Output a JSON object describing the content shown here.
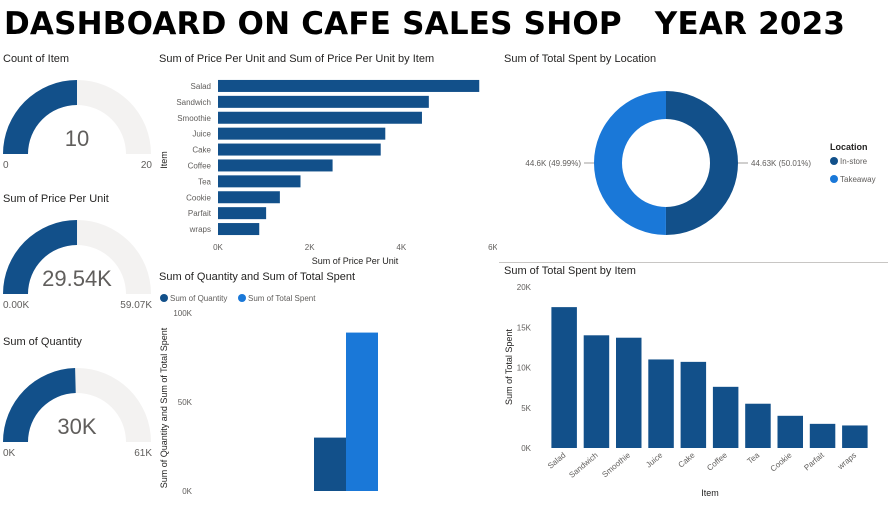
{
  "dashboard": {
    "title": "DASHBOARD ON CAFE SALES SHOP   YEAR 2023"
  },
  "colors": {
    "dark_blue": "#12508a",
    "light_blue": "#1a78d8",
    "track": "#f3f2f1"
  },
  "chart_data": [
    {
      "id": "count_of_item",
      "type": "gauge",
      "title": "Count of Item",
      "value": 10,
      "min": 0,
      "max": 20,
      "value_label": "10",
      "min_label": "0",
      "max_label": "20"
    },
    {
      "id": "sum_price_gauge",
      "type": "gauge",
      "title": "Sum of Price Per Unit",
      "value": 29540,
      "min": 0,
      "max": 59070,
      "value_label": "29.54K",
      "min_label": "0.00K",
      "max_label": "59.07K"
    },
    {
      "id": "sum_quantity_gauge",
      "type": "gauge",
      "title": "Sum of Quantity",
      "value": 30000,
      "min": 0,
      "max": 61000,
      "value_label": "30K",
      "min_label": "0K",
      "max_label": "61K"
    },
    {
      "id": "price_by_item",
      "type": "bar",
      "orientation": "horizontal",
      "title": "Sum of Price Per Unit and Sum of Price Per Unit by Item",
      "xlabel": "Sum of Price Per Unit",
      "ylabel": "Item",
      "categories": [
        "Salad",
        "Sandwich",
        "Smoothie",
        "Juice",
        "Cake",
        "Coffee",
        "Tea",
        "Cookie",
        "Parfait",
        "wraps"
      ],
      "values": [
        5700,
        4600,
        4450,
        3650,
        3550,
        2500,
        1800,
        1350,
        1050,
        900
      ],
      "xlim": [
        0,
        6000
      ],
      "xticks": [
        0,
        2000,
        4000,
        6000
      ],
      "xtick_labels": [
        "0K",
        "2K",
        "4K",
        "6K"
      ]
    },
    {
      "id": "total_by_location",
      "type": "pie",
      "style": "donut",
      "title": "Sum of Total Spent by Location",
      "legend_title": "Location",
      "legend_position": "right",
      "slices": [
        {
          "label": "In-store",
          "value": 44630,
          "data_label": "44.63K (50.01%)"
        },
        {
          "label": "Takeaway",
          "value": 44600,
          "data_label": "44.6K (49.99%)"
        }
      ]
    },
    {
      "id": "qty_and_total",
      "type": "bar",
      "title": "Sum of Quantity and Sum of Total Spent",
      "ylabel": "Sum of Quantity and Sum of Total Spent",
      "legend_position": "top-left",
      "series": [
        {
          "name": "Sum of Quantity",
          "values": [
            30000
          ]
        },
        {
          "name": "Sum of Total Spent",
          "values": [
            89000
          ]
        }
      ],
      "ylim": [
        0,
        100000
      ],
      "yticks": [
        0,
        50000,
        100000
      ],
      "ytick_labels": [
        "0K",
        "50K",
        "100K"
      ]
    },
    {
      "id": "total_by_item",
      "type": "bar",
      "title": "Sum of Total Spent by Item",
      "xlabel": "Item",
      "ylabel": "Sum of Total Spent",
      "categories": [
        "Salad",
        "Sandwich",
        "Smoothie",
        "Juice",
        "Cake",
        "Coffee",
        "Tea",
        "Cookie",
        "Parfait",
        "wraps"
      ],
      "values": [
        17500,
        14000,
        13700,
        11000,
        10700,
        7600,
        5500,
        4000,
        3000,
        2800
      ],
      "ylim": [
        0,
        20000
      ],
      "yticks": [
        0,
        5000,
        10000,
        15000,
        20000
      ],
      "ytick_labels": [
        "0K",
        "5K",
        "10K",
        "15K",
        "20K"
      ]
    }
  ]
}
